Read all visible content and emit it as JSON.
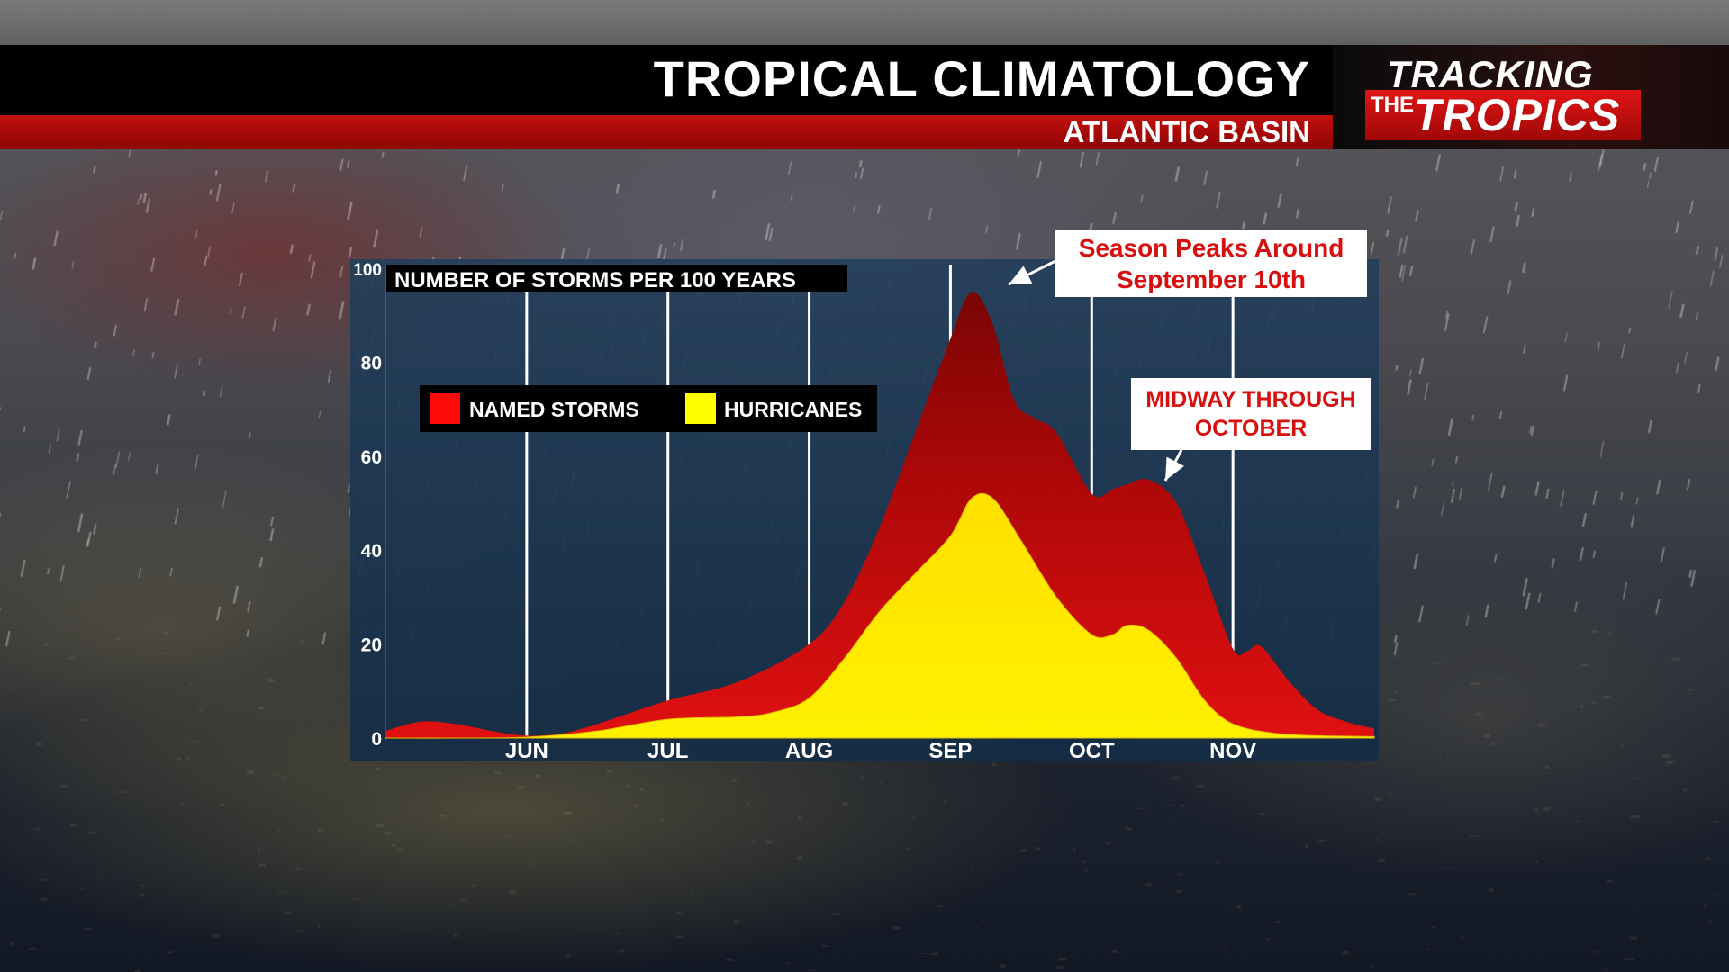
{
  "header": {
    "title": "TROPICAL CLIMATOLOGY",
    "subtitle": "ATLANTIC BASIN"
  },
  "logo": {
    "line1": "TRACKING",
    "the": "THE",
    "line2": "TROPICS"
  },
  "colors": {
    "named_storms": "#c80a0a",
    "hurricanes": "#ffe600",
    "header_red": "#b00a0a",
    "callout_text": "#d80f0f",
    "plot_bg": "#1d3a55"
  },
  "callouts": {
    "peak": {
      "line1": "Season Peaks Around",
      "line2": "September 10th"
    },
    "october": {
      "line1": "MIDWAY THROUGH",
      "line2": "OCTOBER"
    }
  },
  "chart_data": {
    "type": "area",
    "title": "NUMBER OF STORMS PER 100 YEARS",
    "xlabel": "",
    "ylabel": "",
    "x_ticks": [
      "JUN",
      "JUL",
      "AUG",
      "SEP",
      "OCT",
      "NOV"
    ],
    "y_ticks": [
      0,
      20,
      40,
      60,
      80,
      100
    ],
    "ylim": [
      0,
      100
    ],
    "grid": "vertical lines at month starts",
    "legend": "top-left",
    "x_unit": "months from May 1",
    "xlim": [
      0,
      7
    ],
    "series": [
      {
        "name": "NAMED STORMS",
        "color": "#c80a0a",
        "x": [
          0,
          0.25,
          0.5,
          0.75,
          1.0,
          1.25,
          1.5,
          2.0,
          2.5,
          3.0,
          3.25,
          3.5,
          3.75,
          4.0,
          4.15,
          4.3,
          4.45,
          4.6,
          4.75,
          5.0,
          5.15,
          5.25,
          5.4,
          5.6,
          5.8,
          6.0,
          6.1,
          6.2,
          6.4,
          6.6,
          6.8,
          7.0
        ],
        "values": [
          1.5,
          3.5,
          3.0,
          1.5,
          0.5,
          1.0,
          3.0,
          8.0,
          12.0,
          20.0,
          29.0,
          45.0,
          65.0,
          85.0,
          95.0,
          88.0,
          72.0,
          68.0,
          65.0,
          52.0,
          53.0,
          54.0,
          55.0,
          50.0,
          35.0,
          19.0,
          18.5,
          19.5,
          12.0,
          6.0,
          3.5,
          2.0
        ]
      },
      {
        "name": "HURRICANES",
        "color": "#ffe600",
        "x": [
          0,
          0.5,
          1.0,
          1.5,
          2.0,
          2.5,
          2.75,
          3.0,
          3.25,
          3.5,
          3.75,
          4.0,
          4.15,
          4.3,
          4.5,
          4.75,
          5.0,
          5.15,
          5.25,
          5.4,
          5.6,
          5.8,
          6.0,
          6.3,
          6.6,
          7.0
        ],
        "values": [
          0,
          0,
          0.2,
          1.5,
          4.0,
          4.5,
          5.5,
          8.5,
          17.0,
          27.0,
          35.0,
          43.0,
          51.0,
          51.0,
          42.0,
          30.0,
          22.0,
          22.0,
          24.0,
          23.0,
          17.0,
          8.0,
          3.0,
          1.0,
          0.5,
          0.3
        ]
      }
    ]
  }
}
